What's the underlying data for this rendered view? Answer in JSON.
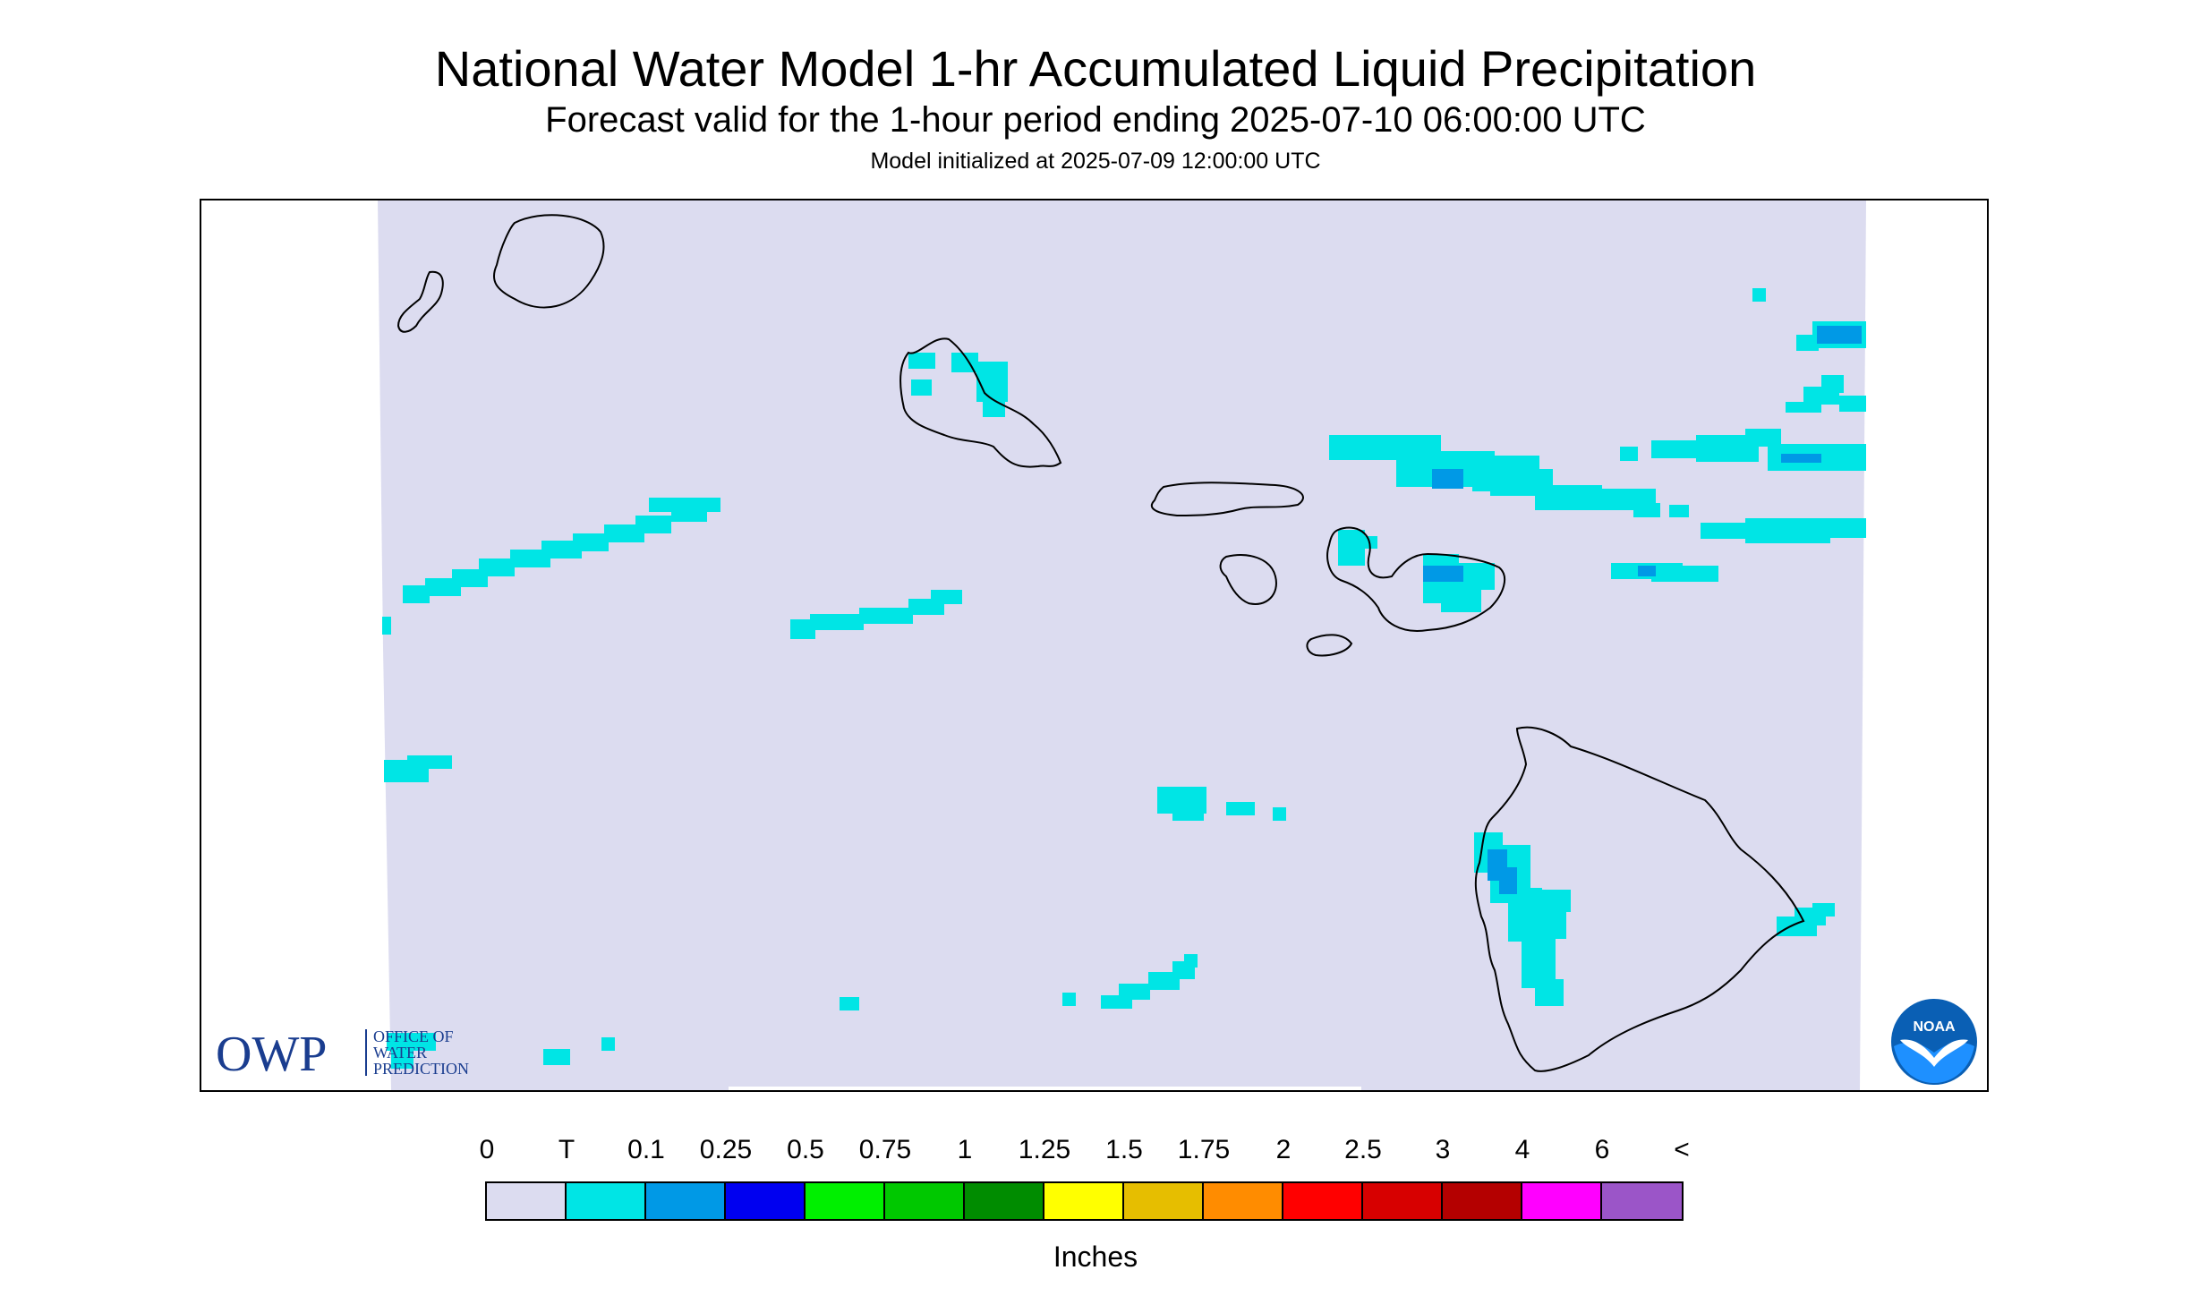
{
  "titles": {
    "main": "National Water Model 1-hr Accumulated Liquid Precipitation",
    "sub": "Forecast valid for the 1-hour period ending 2025-07-10 06:00:00 UTC",
    "init": "Model initialized at 2025-07-09 12:00:00 UTC"
  },
  "map": {
    "background_color": "#dcdcf0",
    "coast_color": "#000000",
    "precip_levels": {
      "trace": "#00e5e5",
      "light": "#0099e6"
    }
  },
  "logos": {
    "owp": {
      "letters": "OWP",
      "line1": "OFFICE OF",
      "line2": "WATER",
      "line3": "PREDICTION",
      "color": "#1a3d8f"
    },
    "noaa": {
      "letters": "NOAA",
      "color": "#0a5fb4"
    }
  },
  "legend": {
    "labels": [
      "0",
      "T",
      "0.1",
      "0.25",
      "0.5",
      "0.75",
      "1",
      "1.25",
      "1.5",
      "1.75",
      "2",
      "2.5",
      "3",
      "4",
      "6",
      "<"
    ],
    "colors": [
      "#dcdcf0",
      "#00e5e5",
      "#0099e6",
      "#0000f0",
      "#00f000",
      "#00c800",
      "#008c00",
      "#ffff00",
      "#e6be00",
      "#ff8c00",
      "#ff0000",
      "#d70000",
      "#b40000",
      "#ff00ff",
      "#9b55c8"
    ],
    "units": "Inches"
  }
}
